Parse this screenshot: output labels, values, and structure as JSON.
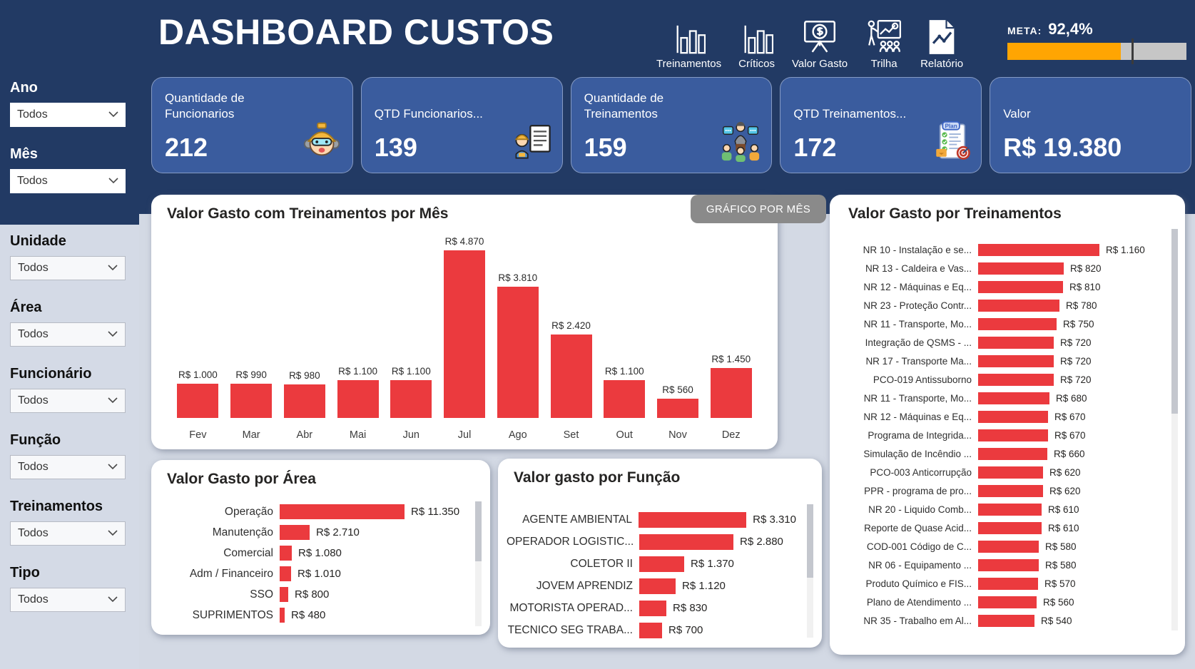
{
  "header": {
    "title": "DASHBOARD CUSTOS",
    "nav_items": [
      {
        "label": "Treinamentos",
        "icon": "bar-chart-icon"
      },
      {
        "label": "Críticos",
        "icon": "bar-chart-icon"
      },
      {
        "label": "Valor Gasto",
        "icon": "money-board-icon"
      },
      {
        "label": "Trilha",
        "icon": "trainer-board-icon"
      },
      {
        "label": "Relatório",
        "icon": "report-doc-icon"
      }
    ],
    "meta": {
      "label": "META:",
      "value": "92,4%",
      "fill_percent": 63.5,
      "target_percent": 69.5,
      "fill_color": "#FFA502",
      "track_color": "#C6C6C6"
    }
  },
  "sidebar": {
    "filters": [
      {
        "label": "Ano",
        "value": "Todos",
        "section": "dark"
      },
      {
        "label": "Mês",
        "value": "Todos",
        "section": "dark"
      },
      {
        "label": "Unidade",
        "value": "Todos",
        "section": "light"
      },
      {
        "label": "Área",
        "value": "Todos",
        "section": "light"
      },
      {
        "label": "Funcionário",
        "value": "Todos",
        "section": "light"
      },
      {
        "label": "Função",
        "value": "Todos",
        "section": "light"
      },
      {
        "label": "Treinamentos",
        "value": "Todos",
        "section": "light"
      },
      {
        "label": "Tipo",
        "value": "Todos",
        "section": "light"
      }
    ]
  },
  "kpis": [
    {
      "label": "Quantidade de Funcionarios",
      "value": "212",
      "icon": "worker-icon"
    },
    {
      "label": "QTD Funcionarios...",
      "value": "139",
      "icon": "worker-board-icon"
    },
    {
      "label": "Quantidade de Treinamentos",
      "value": "159",
      "icon": "presenter-icon"
    },
    {
      "label": "QTD Treinamentos...",
      "value": "172",
      "icon": "plan-icon"
    },
    {
      "label": "Valor",
      "value": "R$ 19.380",
      "icon": null
    }
  ],
  "chart_data": [
    {
      "id": "monthly",
      "type": "bar",
      "title": "Valor Gasto com Treinamentos por Mês",
      "button": "GRÁFICO POR MÊS",
      "categories": [
        "Fev",
        "Mar",
        "Abr",
        "Mai",
        "Jun",
        "Jul",
        "Ago",
        "Set",
        "Out",
        "Nov",
        "Dez"
      ],
      "values": [
        1000,
        990,
        980,
        1100,
        1100,
        4870,
        3810,
        2420,
        1100,
        560,
        1450
      ],
      "labels": [
        "R$ 1.000",
        "R$ 990",
        "R$ 980",
        "R$ 1.100",
        "R$ 1.100",
        "R$ 4.870",
        "R$ 3.810",
        "R$ 2.420",
        "R$ 1.100",
        "R$ 560",
        "R$ 1.450"
      ],
      "bar_color": "#EB3A3E",
      "ylim": [
        0,
        4870
      ],
      "grid": false,
      "legend": "none"
    },
    {
      "id": "area",
      "type": "hbar",
      "title": "Valor Gasto por Área",
      "categories": [
        "Operação",
        "Manutenção",
        "Comercial",
        "Adm / Financeiro",
        "SSO",
        "SUPRIMENTOS"
      ],
      "values": [
        11350,
        2710,
        1080,
        1010,
        800,
        480
      ],
      "labels": [
        "R$ 11.350",
        "R$ 2.710",
        "R$ 1.080",
        "R$ 1.010",
        "R$ 800",
        "R$ 480"
      ],
      "bar_color": "#EB3A3E",
      "grid": false,
      "legend": "none"
    },
    {
      "id": "funcao",
      "type": "hbar",
      "title": "Valor gasto por Função",
      "categories": [
        "AGENTE AMBIENTAL",
        "OPERADOR LOGISTIC...",
        "COLETOR II",
        "JOVEM APRENDIZ",
        "MOTORISTA OPERAD...",
        "TECNICO SEG TRABA..."
      ],
      "values": [
        3310,
        2880,
        1370,
        1120,
        830,
        700
      ],
      "labels": [
        "R$ 3.310",
        "R$ 2.880",
        "R$ 1.370",
        "R$ 1.120",
        "R$ 830",
        "R$ 700"
      ],
      "bar_color": "#EB3A3E",
      "grid": false,
      "legend": "none"
    },
    {
      "id": "treinamentos",
      "type": "hbar",
      "title": "Valor Gasto por Treinamentos",
      "categories": [
        "NR 10 - Instalação e se...",
        "NR 13 - Caldeira e Vas...",
        "NR 12 - Máquinas e Eq...",
        "NR 23 - Proteção Contr...",
        "NR 11 - Transporte, Mo...",
        "Integração de QSMS - ...",
        "NR 17 - Transporte Ma...",
        "PCO-019 Antissuborno",
        "NR 11 - Transporte, Mo...",
        "NR 12 - Máquinas e Eq...",
        "Programa de Integrida...",
        "Simulação de Incêndio ...",
        "PCO-003 Anticorrupção",
        "PPR - programa de pro...",
        "NR 20 - Liquido Comb...",
        "Reporte de Quase Acid...",
        "COD-001 Código de C...",
        "NR 06 - Equipamento ...",
        "Produto Químico e FIS...",
        "Plano de Atendimento ...",
        "NR 35 - Trabalho em Al..."
      ],
      "values": [
        1160,
        820,
        810,
        780,
        750,
        720,
        720,
        720,
        680,
        670,
        670,
        660,
        620,
        620,
        610,
        610,
        580,
        580,
        570,
        560,
        540
      ],
      "labels": [
        "R$ 1.160",
        "R$ 820",
        "R$ 810",
        "R$ 780",
        "R$ 750",
        "R$ 720",
        "R$ 720",
        "R$ 720",
        "R$ 680",
        "R$ 670",
        "R$ 670",
        "R$ 660",
        "R$ 620",
        "R$ 620",
        "R$ 610",
        "R$ 610",
        "R$ 580",
        "R$ 580",
        "R$ 570",
        "R$ 560",
        "R$ 540"
      ],
      "bar_color": "#EB3A3E",
      "grid": false,
      "legend": "none"
    }
  ]
}
